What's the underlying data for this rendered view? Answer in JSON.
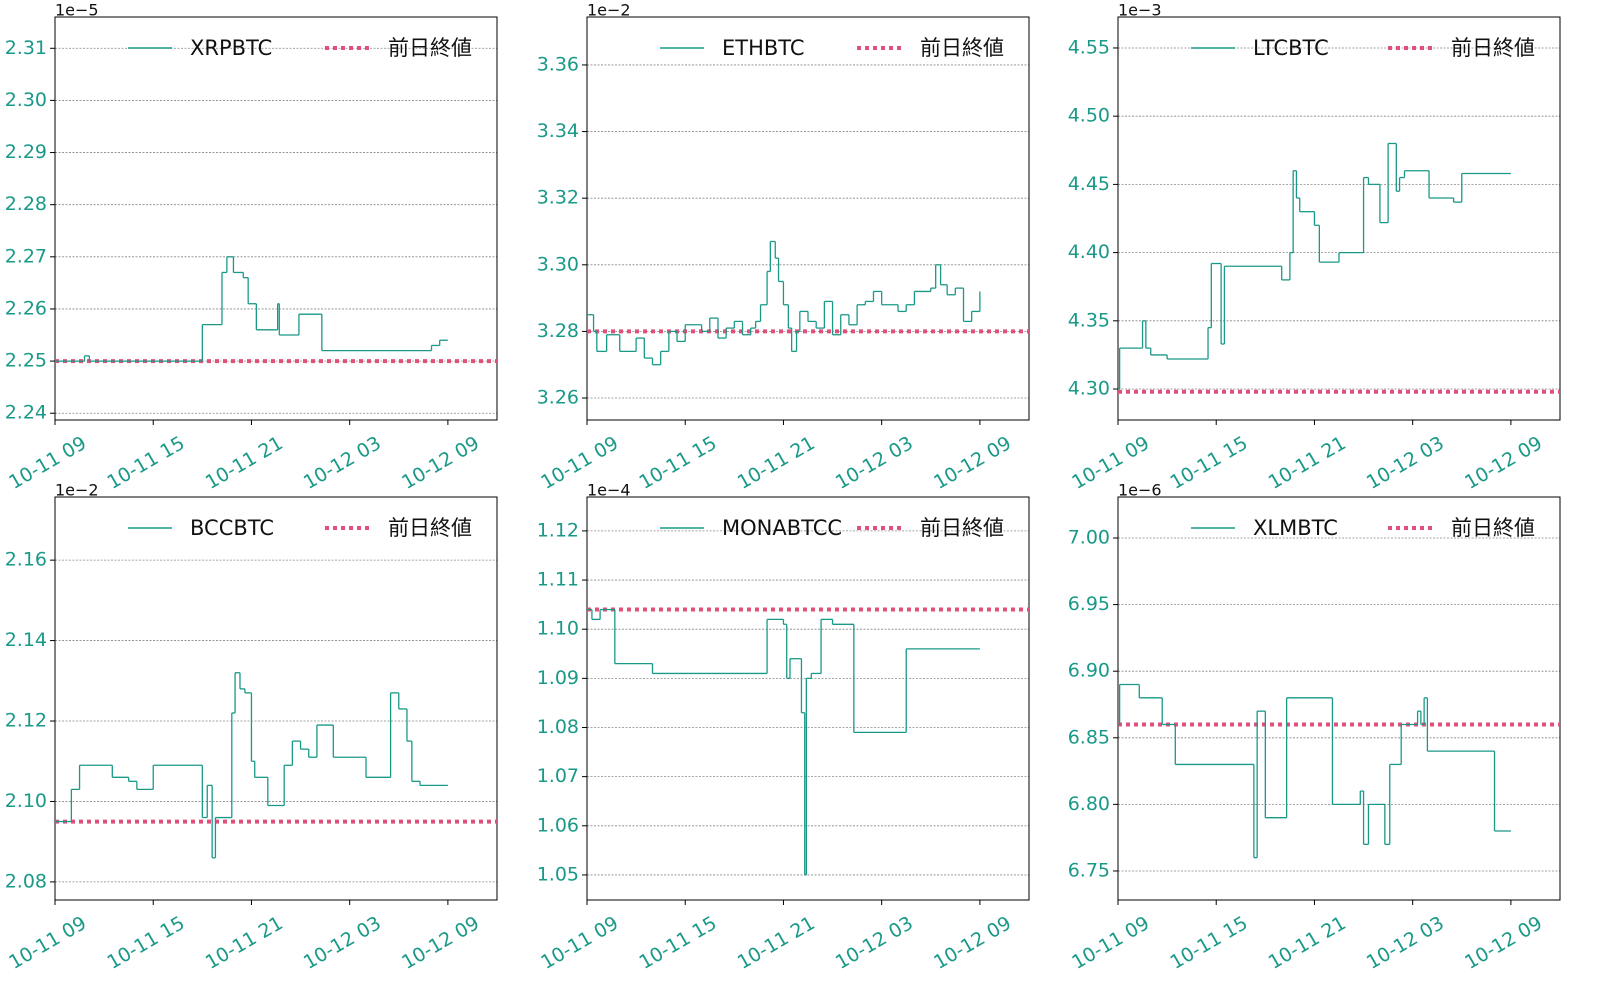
{
  "chart_data": [
    {
      "type": "line",
      "offset_label": "1e−5",
      "drawstyle": "steps-post",
      "grid": true,
      "x": [
        9,
        10.8,
        11.1,
        18,
        19.2,
        19.5,
        19.9,
        20.5,
        20.8,
        21.3,
        22.6,
        22.7,
        23.9,
        25.3,
        32.0,
        32.5,
        33
      ],
      "series": [
        {
          "name": "XRPBTC",
          "color": "#1a9988",
          "values": [
            2.25,
            2.251,
            2.25,
            2.257,
            2.267,
            2.27,
            2.267,
            2.266,
            2.261,
            2.256,
            2.261,
            2.255,
            2.259,
            2.252,
            2.253,
            2.254,
            2.254
          ]
        }
      ],
      "reference": {
        "name": "前日終値",
        "color": "#e0507a",
        "value": 2.25
      },
      "xlim": [
        9,
        36
      ],
      "xticks": [
        {
          "value": 9,
          "label": "10-11 09"
        },
        {
          "value": 15,
          "label": "10-11 15"
        },
        {
          "value": 21,
          "label": "10-11 21"
        },
        {
          "value": 27,
          "label": "10-12 03"
        },
        {
          "value": 33,
          "label": "10-12 09"
        }
      ],
      "ylim": [
        2.2387,
        2.316
      ],
      "yticks": [
        2.24,
        2.25,
        2.26,
        2.27,
        2.28,
        2.29,
        {
          "value": 2.3,
          "label": "2.30"
        },
        2.31
      ]
    },
    {
      "type": "line",
      "offset_label": "1e−2",
      "drawstyle": "steps-post",
      "grid": true,
      "x": [
        9,
        9.4,
        9.6,
        10.2,
        11,
        12,
        12.5,
        13,
        13.5,
        14,
        14.5,
        15,
        16,
        16.5,
        17,
        17.5,
        18,
        18.5,
        19,
        19.3,
        19.6,
        20,
        20.2,
        20.5,
        20.7,
        21,
        21.3,
        21.5,
        21.8,
        22,
        22.5,
        23,
        23.5,
        24,
        24.5,
        25,
        25.5,
        26,
        26.5,
        27,
        28,
        28.5,
        29,
        30,
        30.3,
        30.6,
        31,
        31.5,
        32,
        32.5,
        33
      ],
      "series": [
        {
          "name": "ETHBTC",
          "color": "#1a9988",
          "values": [
            3.285,
            3.28,
            3.274,
            3.279,
            3.274,
            3.278,
            3.272,
            3.27,
            3.274,
            3.28,
            3.277,
            3.282,
            3.28,
            3.284,
            3.278,
            3.281,
            3.283,
            3.279,
            3.281,
            3.283,
            3.288,
            3.298,
            3.307,
            3.302,
            3.295,
            3.288,
            3.281,
            3.274,
            3.28,
            3.286,
            3.283,
            3.281,
            3.289,
            3.279,
            3.285,
            3.282,
            3.288,
            3.289,
            3.292,
            3.288,
            3.286,
            3.288,
            3.292,
            3.293,
            3.3,
            3.294,
            3.291,
            3.293,
            3.283,
            3.286,
            3.292
          ]
        }
      ],
      "reference": {
        "name": "前日終値",
        "color": "#e0507a",
        "value": 3.28
      },
      "xlim": [
        9,
        36
      ],
      "xticks": [
        {
          "value": 9,
          "label": "10-11 09"
        },
        {
          "value": 15,
          "label": "10-11 15"
        },
        {
          "value": 21,
          "label": "10-11 21"
        },
        {
          "value": 27,
          "label": "10-12 03"
        },
        {
          "value": 33,
          "label": "10-12 09"
        }
      ],
      "ylim": [
        3.2534,
        3.3744
      ],
      "yticks": [
        3.26,
        3.28,
        {
          "value": 3.3,
          "label": "3.30"
        },
        3.32,
        3.34,
        3.36
      ]
    },
    {
      "type": "line",
      "offset_label": "1e−3",
      "drawstyle": "steps-post",
      "grid": true,
      "x": [
        9,
        9.1,
        10.5,
        10.7,
        11,
        12,
        14.5,
        14.7,
        15.3,
        15.5,
        19,
        19.5,
        19.7,
        19.9,
        20.1,
        21,
        21.3,
        22.5,
        24,
        24.3,
        24.6,
        25,
        25.5,
        26,
        26.2,
        26.5,
        28,
        29.5,
        30,
        33
      ],
      "series": [
        {
          "name": "LTCBTC",
          "color": "#1a9988",
          "values": [
            4.3,
            4.33,
            4.35,
            4.33,
            4.325,
            4.322,
            4.345,
            4.392,
            4.333,
            4.39,
            4.38,
            4.4,
            4.46,
            4.44,
            4.43,
            4.42,
            4.393,
            4.4,
            4.455,
            4.45,
            4.45,
            4.422,
            4.48,
            4.445,
            4.455,
            4.46,
            4.44,
            4.437,
            4.458,
            4.458
          ]
        }
      ],
      "reference": {
        "name": "前日終値",
        "color": "#e0507a",
        "value": 4.298
      },
      "xlim": [
        9,
        36
      ],
      "xticks": [
        {
          "value": 9,
          "label": "10-11 09"
        },
        {
          "value": 15,
          "label": "10-11 15"
        },
        {
          "value": 21,
          "label": "10-11 21"
        },
        {
          "value": 27,
          "label": "10-12 03"
        },
        {
          "value": 33,
          "label": "10-12 09"
        }
      ],
      "ylim": [
        4.2773,
        4.5727
      ],
      "yticks": [
        {
          "value": 4.3,
          "label": "4.30"
        },
        4.35,
        {
          "value": 4.4,
          "label": "4.40"
        },
        4.45,
        {
          "value": 4.5,
          "label": "4.50"
        },
        4.55
      ]
    },
    {
      "type": "line",
      "offset_label": "1e−2",
      "drawstyle": "steps-post",
      "grid": true,
      "x": [
        9,
        10,
        10.5,
        12.5,
        13.5,
        14,
        15,
        18,
        18.3,
        18.6,
        18.8,
        19.8,
        20,
        20.3,
        20.6,
        21,
        21.2,
        22,
        23,
        23.5,
        24,
        24.5,
        25,
        26,
        28,
        29.5,
        30,
        30.5,
        30.8,
        31.3,
        33
      ],
      "series": [
        {
          "name": "BCCBTC",
          "color": "#1a9988",
          "values": [
            2.095,
            2.103,
            2.109,
            2.106,
            2.105,
            2.103,
            2.109,
            2.096,
            2.104,
            2.086,
            2.096,
            2.122,
            2.132,
            2.128,
            2.127,
            2.11,
            2.106,
            2.099,
            2.109,
            2.115,
            2.113,
            2.111,
            2.119,
            2.111,
            2.106,
            2.127,
            2.123,
            2.115,
            2.105,
            2.104,
            2.104
          ]
        }
      ],
      "reference": {
        "name": "前日終値",
        "color": "#e0507a",
        "value": 2.095
      },
      "xlim": [
        9,
        36
      ],
      "xticks": [
        {
          "value": 9,
          "label": "10-11 09"
        },
        {
          "value": 15,
          "label": "10-11 15"
        },
        {
          "value": 21,
          "label": "10-11 21"
        },
        {
          "value": 27,
          "label": "10-12 03"
        },
        {
          "value": 33,
          "label": "10-12 09"
        }
      ],
      "ylim": [
        2.0755,
        2.1757
      ],
      "yticks": [
        2.08,
        {
          "value": 2.1,
          "label": "2.10"
        },
        2.12,
        2.14,
        2.16
      ]
    },
    {
      "type": "line",
      "offset_label": "1e−4",
      "drawstyle": "steps-post",
      "grid": true,
      "x": [
        9,
        9.3,
        9.8,
        10.7,
        13,
        20,
        21,
        21.2,
        21.4,
        22.1,
        22.3,
        22.4,
        22.7,
        23.3,
        24,
        25.3,
        28.5,
        33
      ],
      "series": [
        {
          "name": "MONABTCC",
          "color": "#1a9988",
          "values": [
            1.104,
            1.102,
            1.104,
            1.093,
            1.091,
            1.102,
            1.101,
            1.09,
            1.094,
            1.083,
            1.05,
            1.09,
            1.091,
            1.102,
            1.101,
            1.079,
            1.096,
            1.096
          ]
        }
      ],
      "reference": {
        "name": "前日終値",
        "color": "#e0507a",
        "value": 1.104
      },
      "xlim": [
        9,
        36
      ],
      "xticks": [
        {
          "value": 9,
          "label": "10-11 09"
        },
        {
          "value": 15,
          "label": "10-11 15"
        },
        {
          "value": 21,
          "label": "10-11 21"
        },
        {
          "value": 27,
          "label": "10-12 03"
        },
        {
          "value": 33,
          "label": "10-12 09"
        }
      ],
      "ylim": [
        1.0449,
        1.1269
      ],
      "yticks": [
        1.05,
        1.06,
        1.07,
        1.08,
        1.09,
        {
          "value": 1.1,
          "label": "1.10"
        },
        1.11,
        1.12
      ]
    },
    {
      "type": "line",
      "offset_label": "1e−6",
      "drawstyle": "steps-post",
      "grid": true,
      "x": [
        9,
        9.1,
        10.3,
        11.7,
        12.5,
        17.3,
        17.5,
        18,
        19.3,
        22.1,
        23.8,
        24,
        24.3,
        25.3,
        25.6,
        26.3,
        27.3,
        27.5,
        27.7,
        27.9,
        32,
        33
      ],
      "series": [
        {
          "name": "XLMBTC",
          "color": "#1a9988",
          "values": [
            6.86,
            6.89,
            6.88,
            6.86,
            6.83,
            6.76,
            6.87,
            6.79,
            6.88,
            6.8,
            6.81,
            6.77,
            6.8,
            6.77,
            6.83,
            6.86,
            6.87,
            6.86,
            6.88,
            6.84,
            6.78,
            6.78
          ]
        }
      ],
      "reference": {
        "name": "前日終値",
        "color": "#e0507a",
        "value": 6.86
      },
      "xlim": [
        9,
        36
      ],
      "xticks": [
        {
          "value": 9,
          "label": "10-11 09"
        },
        {
          "value": 15,
          "label": "10-11 15"
        },
        {
          "value": 21,
          "label": "10-11 21"
        },
        {
          "value": 27,
          "label": "10-12 03"
        },
        {
          "value": 33,
          "label": "10-12 09"
        }
      ],
      "ylim": [
        6.7282,
        7.0308
      ],
      "yticks": [
        6.75,
        {
          "value": 6.8,
          "label": "6.80"
        },
        6.85,
        {
          "value": 6.9,
          "label": "6.90"
        },
        6.95,
        {
          "value": 7,
          "label": "7.00"
        }
      ]
    }
  ]
}
